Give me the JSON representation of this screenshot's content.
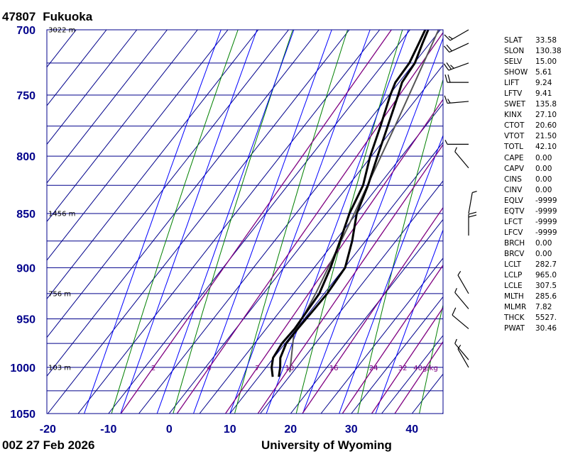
{
  "chart_data": {
    "type": "skew-t log-p sounding",
    "station": {
      "id": "47807",
      "name": "Fukuoka"
    },
    "time_label": "00Z 27 Feb 2026",
    "credit": "University of Wyoming",
    "pressure_axis": {
      "range_hpa": [
        1050,
        700
      ],
      "scale": "log",
      "ticks": [
        "700",
        "750",
        "800",
        "850",
        "900",
        "950",
        "1000",
        "1050"
      ]
    },
    "temperature_axis": {
      "unit": "°C",
      "range_at_1050": [
        -20,
        45
      ],
      "ticks": [
        "-20",
        "-10",
        "0",
        "10",
        "20",
        "30",
        "40"
      ]
    },
    "grid": true,
    "height_labels": [
      {
        "p": 700,
        "text": "3022 m"
      },
      {
        "p": 850,
        "text": "1456 m"
      },
      {
        "p": 925,
        "text": "756 m"
      },
      {
        "p": 1000,
        "text": "103 m"
      }
    ],
    "mixing_ratio_lines": {
      "values": [
        2,
        4,
        7,
        10,
        16,
        24,
        32,
        40
      ],
      "labels": [
        "2",
        "4",
        "7",
        "10",
        "16",
        "24",
        "32",
        "40g/kg"
      ]
    },
    "temperature_profile": [
      {
        "p": 1010,
        "t": 13.3
      },
      {
        "p": 1000,
        "t": 12.3
      },
      {
        "p": 990,
        "t": 11.1
      },
      {
        "p": 975,
        "t": 10.2
      },
      {
        "p": 960,
        "t": 10.2
      },
      {
        "p": 940,
        "t": 10.4
      },
      {
        "p": 925,
        "t": 10.5
      },
      {
        "p": 900,
        "t": 10.1
      },
      {
        "p": 875,
        "t": 7.8
      },
      {
        "p": 850,
        "t": 5.0
      },
      {
        "p": 825,
        "t": 3.2
      },
      {
        "p": 800,
        "t": 1.0
      },
      {
        "p": 775,
        "t": -1.2
      },
      {
        "p": 750,
        "t": -3.5
      },
      {
        "p": 740,
        "t": -4.5
      },
      {
        "p": 725,
        "t": -4.9
      },
      {
        "p": 710,
        "t": -6.2
      },
      {
        "p": 700,
        "t": -7.0
      }
    ],
    "dewpoint_profile": [
      {
        "p": 1010,
        "t": 12.3
      },
      {
        "p": 1000,
        "t": 10.9
      },
      {
        "p": 990,
        "t": 9.9
      },
      {
        "p": 975,
        "t": 9.5
      },
      {
        "p": 960,
        "t": 9.7
      },
      {
        "p": 925,
        "t": 9.2
      },
      {
        "p": 900,
        "t": 7.7
      },
      {
        "p": 875,
        "t": 5.8
      },
      {
        "p": 850,
        "t": 3.8
      },
      {
        "p": 825,
        "t": 2.4
      },
      {
        "p": 800,
        "t": -0.2
      },
      {
        "p": 775,
        "t": -2.4
      },
      {
        "p": 750,
        "t": -4.8
      },
      {
        "p": 740,
        "t": -5.6
      },
      {
        "p": 725,
        "t": -5.8
      },
      {
        "p": 710,
        "t": -6.8
      },
      {
        "p": 700,
        "t": -7.5
      }
    ],
    "parcel_path": [
      {
        "p": 1005,
        "t": 14.5
      },
      {
        "p": 965,
        "t": 10.2
      },
      {
        "p": 925,
        "t": 8.6
      },
      {
        "p": 850,
        "t": 4.6
      },
      {
        "p": 775,
        "t": 0.0
      },
      {
        "p": 700,
        "t": -5.3
      }
    ],
    "wind_barbs": [
      {
        "p": 1000,
        "dir_deg": 330,
        "speed_kt": 5
      },
      {
        "p": 992,
        "dir_deg": 320,
        "speed_kt": 7
      },
      {
        "p": 960,
        "dir_deg": 310,
        "speed_kt": 10
      },
      {
        "p": 940,
        "dir_deg": 320,
        "speed_kt": 8
      },
      {
        "p": 925,
        "dir_deg": 330,
        "speed_kt": 6
      },
      {
        "p": 870,
        "dir_deg": 0,
        "speed_kt": 20
      },
      {
        "p": 850,
        "dir_deg": 10,
        "speed_kt": 8
      },
      {
        "p": 810,
        "dir_deg": 320,
        "speed_kt": 6
      },
      {
        "p": 790,
        "dir_deg": 270,
        "speed_kt": 5
      },
      {
        "p": 755,
        "dir_deg": 265,
        "speed_kt": 15
      },
      {
        "p": 740,
        "dir_deg": 270,
        "speed_kt": 20
      },
      {
        "p": 725,
        "dir_deg": 250,
        "speed_kt": 25
      },
      {
        "p": 710,
        "dir_deg": 245,
        "speed_kt": 20
      },
      {
        "p": 700,
        "dir_deg": 240,
        "speed_kt": 15
      }
    ],
    "colors": {
      "isotherm_isobar": "#00008b",
      "dry_adiabat": "#008000",
      "moist_adiabat": "#0000ff",
      "mixing_ratio": "#800080",
      "profiles": "#000000",
      "parcel": "#555555",
      "axis_labels": "#00008b"
    }
  },
  "indices": [
    {
      "key": "SLAT",
      "value": "33.58"
    },
    {
      "key": "SLON",
      "value": "130.38"
    },
    {
      "key": "SELV",
      "value": "15.00"
    },
    {
      "key": "SHOW",
      "value": "5.61"
    },
    {
      "key": "LIFT",
      "value": "9.24"
    },
    {
      "key": "LFTV",
      "value": "9.41"
    },
    {
      "key": "SWET",
      "value": "135.8"
    },
    {
      "key": "KINX",
      "value": "27.10"
    },
    {
      "key": "CTOT",
      "value": "20.60"
    },
    {
      "key": "VTOT",
      "value": "21.50"
    },
    {
      "key": "TOTL",
      "value": "42.10"
    },
    {
      "key": "CAPE",
      "value": "0.00"
    },
    {
      "key": "CAPV",
      "value": "0.00"
    },
    {
      "key": "CINS",
      "value": "0.00"
    },
    {
      "key": "CINV",
      "value": "0.00"
    },
    {
      "key": "EQLV",
      "value": "-9999"
    },
    {
      "key": "EQTV",
      "value": "-9999"
    },
    {
      "key": "LFCT",
      "value": "-9999"
    },
    {
      "key": "LFCV",
      "value": "-9999"
    },
    {
      "key": "BRCH",
      "value": "0.00"
    },
    {
      "key": "BRCV",
      "value": "0.00"
    },
    {
      "key": "LCLT",
      "value": "282.7"
    },
    {
      "key": "LCLP",
      "value": "965.0"
    },
    {
      "key": "LCLE",
      "value": "307.5"
    },
    {
      "key": "MLTH",
      "value": "285.6"
    },
    {
      "key": "MLMR",
      "value": "7.82"
    },
    {
      "key": "THCK",
      "value": "5527."
    },
    {
      "key": "PWAT",
      "value": "30.46"
    }
  ]
}
